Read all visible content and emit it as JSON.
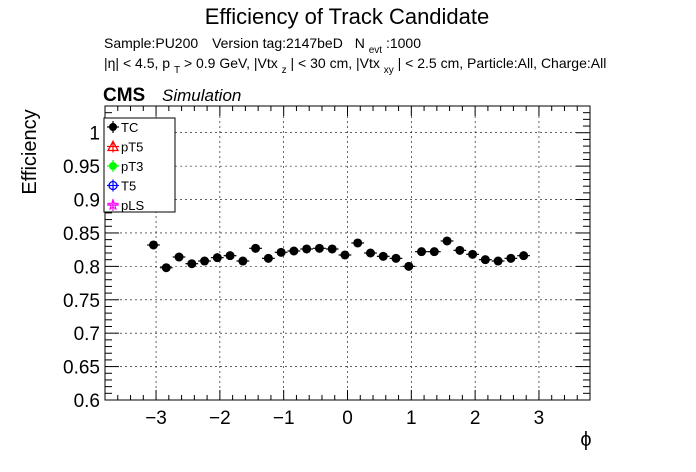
{
  "chart_data": {
    "type": "scatter",
    "title": "Efficiency of Track Candidate",
    "subtitle_line1": {
      "sample": "Sample:PU200",
      "version": "Version tag:2147beD",
      "n_prefix": "N",
      "n_sub": "evt",
      "n_value": ":1000"
    },
    "subtitle_line2": {
      "eta": "|η| < 4.5, p",
      "pt_sub": "T",
      "pt_cut": " > 0.9 GeV, |Vtx",
      "z_sub": "z",
      "z_cut": "| < 30 cm, |Vtx",
      "xy_sub": "xy",
      "rest": "| < 2.5 cm, Particle:All, Charge:All"
    },
    "cms_label": "CMS",
    "cms_sublabel": "Simulation",
    "xlabel": "ϕ",
    "ylabel": "Efficiency",
    "xlim": [
      -3.8,
      3.8
    ],
    "ylim": [
      0.6,
      1.04
    ],
    "x_ticks": [
      -3,
      -2,
      -1,
      0,
      1,
      2,
      3
    ],
    "x_tick_labels": [
      "−3",
      "−2",
      "−1",
      "0",
      "1",
      "2",
      "3"
    ],
    "y_ticks": [
      0.6,
      0.65,
      0.7,
      0.75,
      0.8,
      0.85,
      0.9,
      0.95,
      1.0
    ],
    "y_tick_labels": [
      "0.6",
      "0.65",
      "0.7",
      "0.75",
      "0.8",
      "0.85",
      "0.9",
      "0.95",
      "1"
    ],
    "grid": true,
    "legend_position": "top-left",
    "legend": [
      {
        "name": "TC",
        "color": "#000000",
        "marker": "filled-circle"
      },
      {
        "name": "pT5",
        "color": "#ff0000",
        "marker": "open-triangle"
      },
      {
        "name": "pT3",
        "color": "#00ff00",
        "marker": "filled-circle"
      },
      {
        "name": "T5",
        "color": "#0000ff",
        "marker": "open-circle"
      },
      {
        "name": "pLS",
        "color": "#ff00ff",
        "marker": "open-star"
      }
    ],
    "series": [
      {
        "name": "TC",
        "color": "#000000",
        "x_err": 0.1,
        "points": [
          {
            "x": -3.04,
            "y": 0.832,
            "err": 0.005
          },
          {
            "x": -2.84,
            "y": 0.798,
            "err": 0.005
          },
          {
            "x": -2.64,
            "y": 0.814,
            "err": 0.005
          },
          {
            "x": -2.44,
            "y": 0.804,
            "err": 0.005
          },
          {
            "x": -2.24,
            "y": 0.808,
            "err": 0.005
          },
          {
            "x": -2.04,
            "y": 0.813,
            "err": 0.005
          },
          {
            "x": -1.84,
            "y": 0.816,
            "err": 0.005
          },
          {
            "x": -1.64,
            "y": 0.808,
            "err": 0.005
          },
          {
            "x": -1.44,
            "y": 0.827,
            "err": 0.005
          },
          {
            "x": -1.24,
            "y": 0.812,
            "err": 0.005
          },
          {
            "x": -1.04,
            "y": 0.821,
            "err": 0.005
          },
          {
            "x": -0.84,
            "y": 0.823,
            "err": 0.005
          },
          {
            "x": -0.64,
            "y": 0.826,
            "err": 0.005
          },
          {
            "x": -0.44,
            "y": 0.827,
            "err": 0.005
          },
          {
            "x": -0.24,
            "y": 0.826,
            "err": 0.005
          },
          {
            "x": -0.04,
            "y": 0.817,
            "err": 0.005
          },
          {
            "x": 0.16,
            "y": 0.835,
            "err": 0.005
          },
          {
            "x": 0.36,
            "y": 0.82,
            "err": 0.005
          },
          {
            "x": 0.56,
            "y": 0.815,
            "err": 0.005
          },
          {
            "x": 0.76,
            "y": 0.812,
            "err": 0.005
          },
          {
            "x": 0.96,
            "y": 0.8,
            "err": 0.005
          },
          {
            "x": 1.16,
            "y": 0.822,
            "err": 0.005
          },
          {
            "x": 1.36,
            "y": 0.822,
            "err": 0.005
          },
          {
            "x": 1.56,
            "y": 0.838,
            "err": 0.005
          },
          {
            "x": 1.76,
            "y": 0.824,
            "err": 0.005
          },
          {
            "x": 1.96,
            "y": 0.818,
            "err": 0.005
          },
          {
            "x": 2.16,
            "y": 0.81,
            "err": 0.005
          },
          {
            "x": 2.36,
            "y": 0.808,
            "err": 0.005
          },
          {
            "x": 2.56,
            "y": 0.812,
            "err": 0.005
          },
          {
            "x": 2.76,
            "y": 0.816,
            "err": 0.005
          }
        ]
      }
    ]
  }
}
